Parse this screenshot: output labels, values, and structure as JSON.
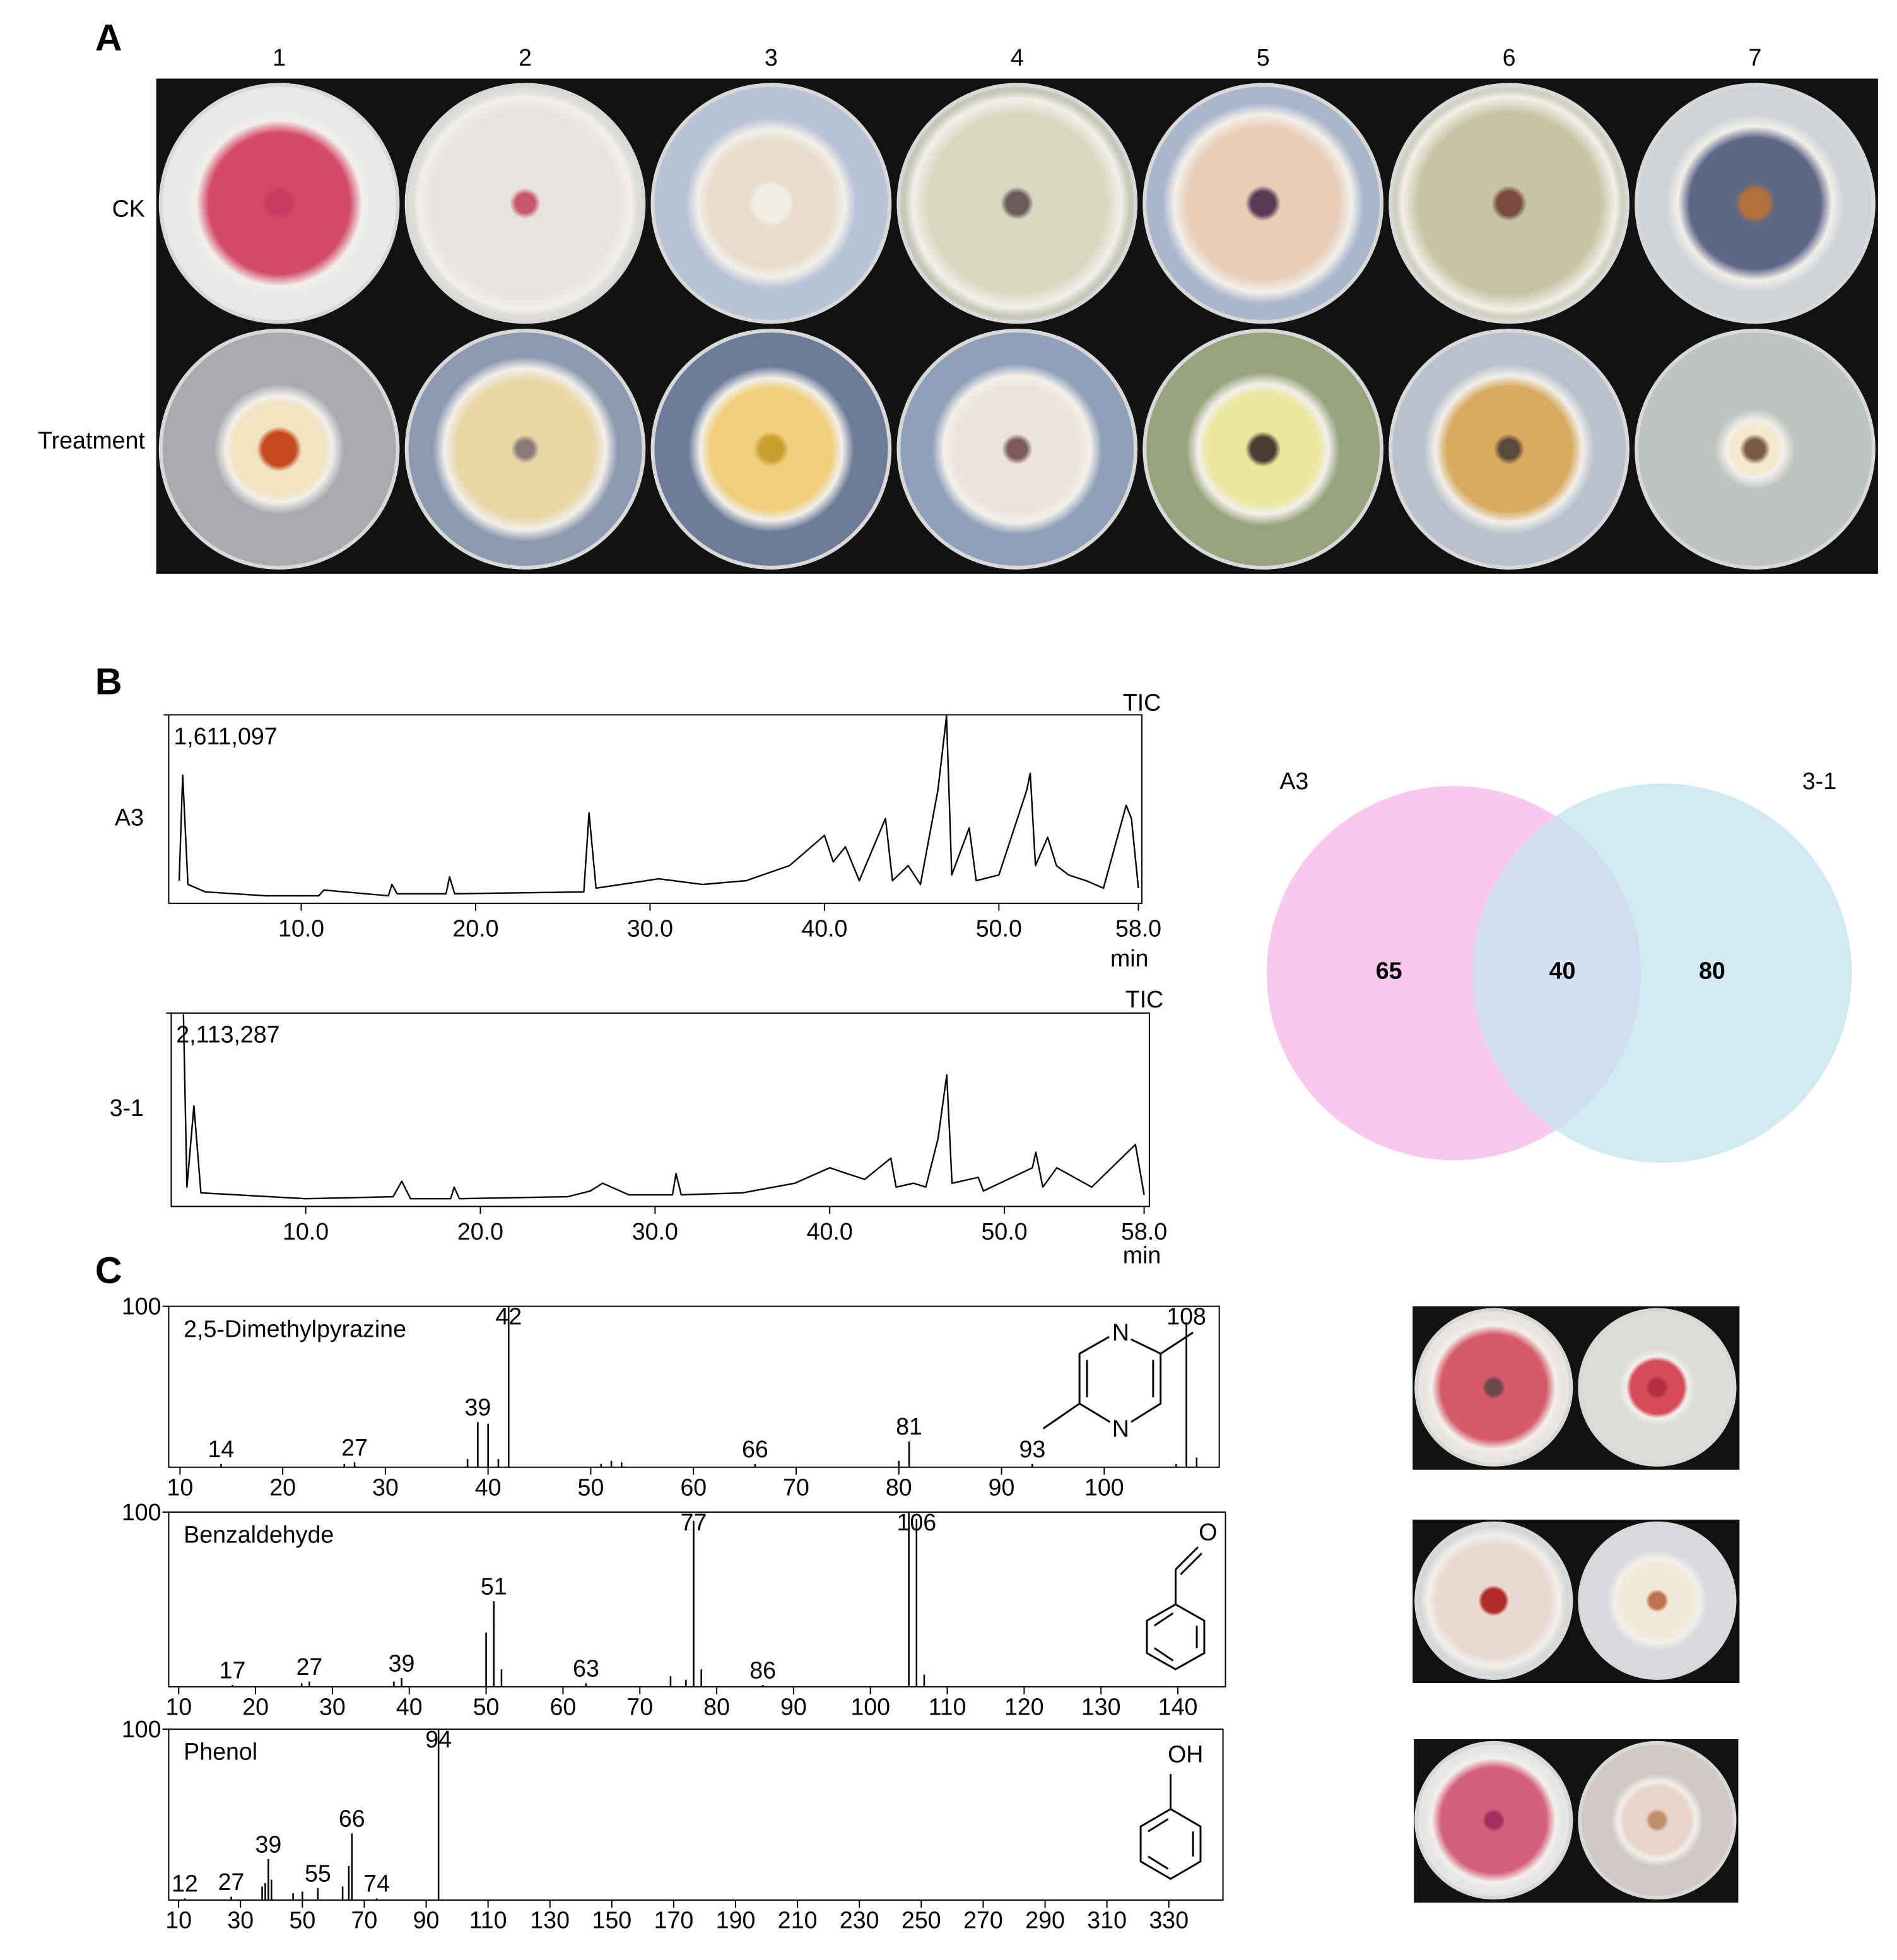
{
  "figure": {
    "panel_labels": [
      "A",
      "B",
      "C"
    ],
    "columns": [
      "1",
      "2",
      "3",
      "4",
      "5",
      "6",
      "7"
    ],
    "rows": [
      "CK",
      "Treatment"
    ]
  },
  "chart_data": [
    {
      "type": "line",
      "annotation": "TIC",
      "xlabel": "min",
      "xlim": [
        2.4,
        58.2
      ],
      "ylim": [
        0,
        1611097
      ],
      "xticks": [
        {
          "value": 10,
          "label": "10.0"
        },
        {
          "value": 20,
          "label": "20.0"
        },
        {
          "value": 30,
          "label": "30.0"
        },
        {
          "value": 40,
          "label": "40.0"
        },
        {
          "value": 50,
          "label": "50.0"
        },
        {
          "value": 58,
          "label": "58.0"
        }
      ],
      "yticks": [
        {
          "value": 1611097,
          "label": "1,611,097"
        }
      ],
      "x": [
        3.0,
        3.2,
        3.5,
        4.5,
        8,
        11,
        11.3,
        15,
        15.2,
        15.5,
        18.3,
        18.5,
        18.8,
        26.2,
        26.5,
        26.9,
        30.5,
        33,
        35.5,
        38,
        40,
        40.5,
        41.2,
        42,
        43.5,
        43.9,
        44.8,
        45.5,
        46,
        46.5,
        47,
        47.3,
        48.3,
        48.7,
        50,
        51.6,
        51.8,
        52.1,
        52.8,
        53.3,
        54,
        55,
        56,
        57.3,
        57.6,
        58
      ],
      "series": [
        {
          "name": "A3",
          "color": "#000000",
          "values": [
            193000,
            1096000,
            161000,
            97000,
            64000,
            64000,
            113000,
            64000,
            161000,
            81000,
            81000,
            226000,
            81000,
            97000,
            773000,
            129000,
            209000,
            161000,
            193000,
            322000,
            580000,
            354000,
            483000,
            193000,
            725000,
            193000,
            322000,
            161000,
            564000,
            967000,
            1600000,
            242000,
            644000,
            193000,
            242000,
            967000,
            1112000,
            322000,
            564000,
            322000,
            242000,
            193000,
            129000,
            838000,
            725000,
            129000
          ]
        }
      ]
    },
    {
      "type": "line",
      "annotation": "TIC",
      "xlabel": "min",
      "xlim": [
        2.3,
        58.3
      ],
      "ylim": [
        0,
        2113287
      ],
      "xticks": [
        {
          "value": 10,
          "label": "10.0"
        },
        {
          "value": 20,
          "label": "20.0"
        },
        {
          "value": 30,
          "label": "30.0"
        },
        {
          "value": 40,
          "label": "40.0"
        },
        {
          "value": 50,
          "label": "50.0"
        },
        {
          "value": 58,
          "label": "58.0"
        }
      ],
      "yticks": [
        {
          "value": 2113287,
          "label": "2,113,287"
        }
      ],
      "x": [
        3.0,
        3.2,
        3.6,
        4.0,
        10,
        15,
        15.5,
        16,
        18.3,
        18.5,
        18.8,
        25,
        26.3,
        27,
        28.5,
        31.0,
        31.2,
        31.5,
        35,
        38,
        40,
        41,
        42,
        43.5,
        43.8,
        44.8,
        45.5,
        46.2,
        46.7,
        47,
        48.5,
        48.8,
        51.6,
        51.8,
        52.2,
        53,
        55,
        57.5,
        58
      ],
      "series": [
        {
          "name": "3-1",
          "color": "#000000",
          "values": [
            2100000,
            211000,
            1099000,
            148000,
            85000,
            106000,
            275000,
            85000,
            85000,
            211000,
            85000,
            106000,
            169000,
            254000,
            127000,
            127000,
            359000,
            127000,
            148000,
            254000,
            423000,
            359000,
            296000,
            528000,
            211000,
            254000,
            211000,
            740000,
            1437000,
            254000,
            317000,
            169000,
            423000,
            592000,
            211000,
            423000,
            211000,
            676000,
            127000
          ]
        }
      ]
    },
    {
      "type": "venn",
      "sets": [
        "A3",
        "3-1"
      ],
      "values": [
        65,
        40,
        80
      ],
      "colors": [
        "#f9bdea",
        "#c6e4ee"
      ]
    },
    {
      "type": "bar",
      "title": "2,5-Dimethylpyrazine",
      "color": "#000000",
      "structure_labels": [
        "N",
        "N"
      ],
      "xlim": [
        8.9,
        111.2
      ],
      "ylim": [
        0,
        100
      ],
      "xticks": [
        10,
        20,
        30,
        40,
        50,
        60,
        70,
        80,
        90,
        100
      ],
      "yticks": [
        100
      ],
      "x": [
        14,
        26,
        27,
        38,
        39,
        40,
        41,
        42,
        51,
        52,
        53,
        66,
        80,
        81,
        93,
        107,
        108,
        109
      ],
      "values": [
        2,
        2,
        3,
        5,
        28,
        27,
        5,
        100,
        2,
        4,
        3,
        2,
        4,
        16,
        2,
        2,
        90,
        6
      ],
      "peak_labels": [
        "14",
        null,
        "27",
        null,
        "39",
        null,
        null,
        "42",
        null,
        null,
        null,
        "66",
        null,
        "81",
        "93",
        null,
        "108",
        null
      ]
    },
    {
      "type": "bar",
      "title": "Benzaldehyde",
      "color": "#000000",
      "structure_labels": [
        "O"
      ],
      "xlim": [
        8.7,
        146.2
      ],
      "ylim": [
        0,
        100
      ],
      "xticks": [
        10,
        20,
        30,
        40,
        50,
        60,
        70,
        80,
        90,
        100,
        110,
        120,
        130,
        140
      ],
      "yticks": [
        100
      ],
      "x": [
        17,
        26,
        27,
        38,
        39,
        50,
        51,
        52,
        63,
        74,
        76,
        77,
        78,
        86,
        105,
        106,
        107
      ],
      "values": [
        1,
        2,
        3,
        3,
        5,
        31,
        49,
        10,
        2,
        6,
        4,
        95,
        10,
        1,
        100,
        96,
        7
      ],
      "peak_labels": [
        "17",
        null,
        "27",
        null,
        "39",
        null,
        "51",
        null,
        "63",
        null,
        null,
        "77",
        null,
        "86",
        null,
        "106",
        null
      ]
    },
    {
      "type": "bar",
      "title": "Phenol",
      "color": "#000000",
      "structure_labels": [
        "OH"
      ],
      "xlim": [
        6.8,
        347.5
      ],
      "ylim": [
        0,
        100
      ],
      "xticks": [
        10,
        30,
        50,
        70,
        90,
        110,
        130,
        150,
        170,
        190,
        210,
        230,
        250,
        270,
        290,
        310,
        330
      ],
      "yticks": [
        100
      ],
      "x": [
        12,
        27,
        37,
        38,
        39,
        40,
        47,
        50,
        55,
        63,
        65,
        66,
        74,
        94
      ],
      "values": [
        1,
        2,
        8,
        10,
        24,
        12,
        4,
        5,
        7,
        8,
        20,
        39,
        1,
        100
      ],
      "peak_labels": [
        "12",
        "27",
        null,
        null,
        "39",
        null,
        null,
        null,
        "55",
        null,
        null,
        "66",
        "74",
        "94"
      ]
    }
  ]
}
